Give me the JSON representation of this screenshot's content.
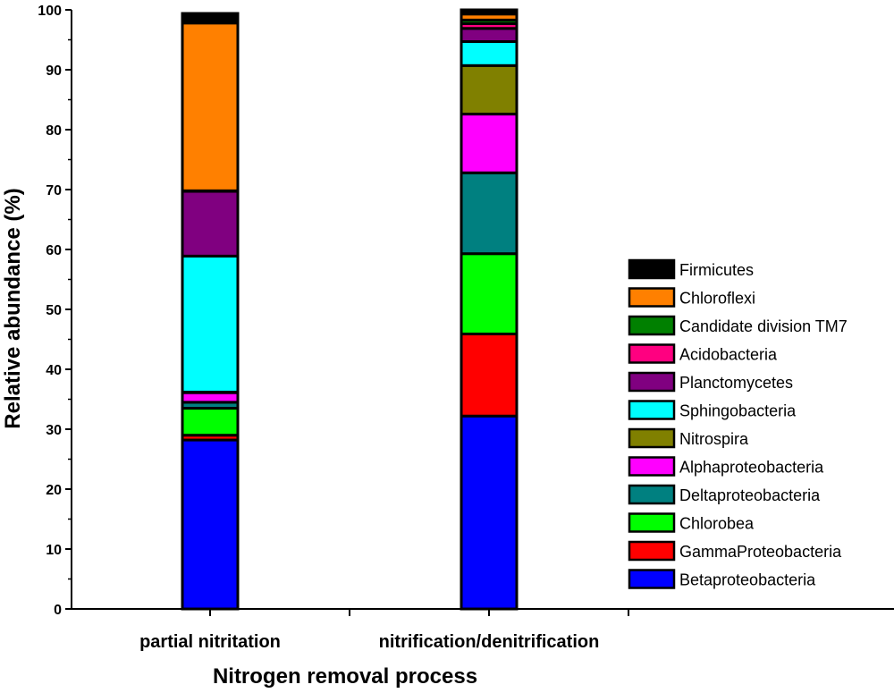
{
  "chart_data": {
    "type": "bar",
    "stacked": true,
    "title": "",
    "xlabel": "Nitrogen removal process",
    "ylabel": "Relative abundance (%)",
    "ylim": [
      0,
      100
    ],
    "yticks": [
      0,
      10,
      20,
      30,
      40,
      50,
      60,
      70,
      80,
      90,
      100
    ],
    "categories": [
      "partial nitritation",
      "nitrification/denitrification"
    ],
    "legend_position": "right",
    "series": [
      {
        "name": "Betaproteobacteria",
        "color": "#0000ff",
        "values": [
          28.2,
          32.2
        ]
      },
      {
        "name": "GammaProteobacteria",
        "color": "#ff0000",
        "values": [
          0.8,
          13.7
        ]
      },
      {
        "name": "Chlorobea",
        "color": "#00ff00",
        "values": [
          4.5,
          13.4
        ]
      },
      {
        "name": "Deltaproteobacteria",
        "color": "#008080",
        "values": [
          1.0,
          13.5
        ]
      },
      {
        "name": "Alphaproteobacteria",
        "color": "#ff00ff",
        "values": [
          1.6,
          9.8
        ]
      },
      {
        "name": "Nitrospira",
        "color": "#808000",
        "values": [
          0.1,
          8.1
        ]
      },
      {
        "name": "Sphingobacteria",
        "color": "#00ffff",
        "values": [
          22.7,
          4.0
        ]
      },
      {
        "name": "Planctomycetes",
        "color": "#800080",
        "values": [
          10.8,
          2.2
        ]
      },
      {
        "name": "Acidobacteria",
        "color": "#ff0080",
        "values": [
          0.0,
          0.8
        ]
      },
      {
        "name": "Candidate division TM7",
        "color": "#008000",
        "values": [
          0.1,
          0.6
        ]
      },
      {
        "name": "Chloroflexi",
        "color": "#ff8000",
        "values": [
          28.0,
          1.0
        ]
      },
      {
        "name": "Firmicutes",
        "color": "#000000",
        "values": [
          1.6,
          0.7
        ]
      }
    ]
  }
}
